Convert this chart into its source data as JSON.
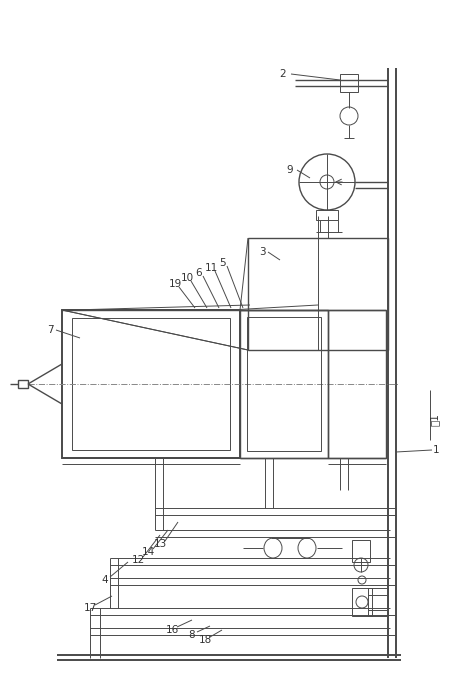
{
  "bg_color": "#ffffff",
  "lc": "#4a4a4a",
  "lc2": "#666666",
  "label_color": "#333333",
  "lw_thin": 0.7,
  "lw_med": 1.0,
  "lw_thick": 1.4,
  "lw_xthick": 2.0
}
